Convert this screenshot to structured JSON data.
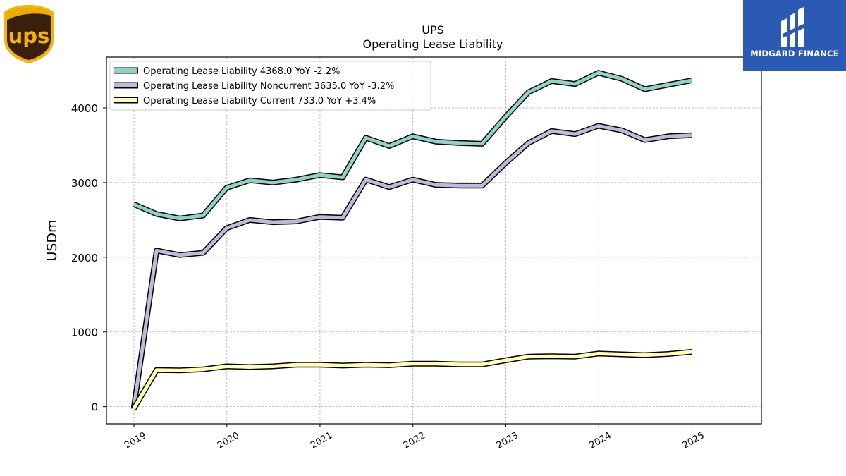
{
  "branding": {
    "left_logo_text": "ups",
    "right_logo_text": "MIDGARD FINANCE",
    "right_logo_bg": "#2a5ab4"
  },
  "chart_data": {
    "type": "line",
    "title": "UPS",
    "subtitle": "Operating Lease Liability",
    "xlabel": "",
    "ylabel": "USDm",
    "x_ticks": [
      "2019",
      "2020",
      "2021",
      "2022",
      "2023",
      "2024",
      "2025"
    ],
    "y_ticks": [
      "0",
      "1000",
      "2000",
      "3000",
      "4000"
    ],
    "xlim": [
      "2018-09-15",
      "2025-10-01"
    ],
    "ylim": [
      -230,
      4680
    ],
    "grid": true,
    "legend_position": "top-left",
    "x": [
      "2018-12-31",
      "2019-03-31",
      "2019-06-30",
      "2019-09-30",
      "2019-12-31",
      "2020-03-31",
      "2020-06-30",
      "2020-09-30",
      "2020-12-31",
      "2021-03-31",
      "2021-06-30",
      "2021-09-30",
      "2021-12-31",
      "2022-03-31",
      "2022-06-30",
      "2022-09-30",
      "2022-12-31",
      "2023-03-31",
      "2023-06-30",
      "2023-09-30",
      "2023-12-31",
      "2024-03-31",
      "2024-06-30",
      "2024-09-30",
      "2024-12-31"
    ],
    "series": [
      {
        "name": "Operating Lease Liability",
        "legend_label": "Operating Lease Liability  4368.0 YoY -2.2%",
        "color": "#8dd3c7",
        "values": [
          2710,
          2580,
          2520,
          2560,
          2930,
          3030,
          3000,
          3040,
          3100,
          3070,
          3600,
          3490,
          3620,
          3550,
          3530,
          3520,
          3880,
          4210,
          4360,
          4320,
          4470,
          4390,
          4250,
          4310,
          4368
        ]
      },
      {
        "name": "Operating Lease Liability Noncurrent",
        "legend_label": "Operating Lease Liability Noncurrent  3635.0 YoY -3.2%",
        "color": "#bebada",
        "values": [
          -30,
          2090,
          2030,
          2060,
          2390,
          2500,
          2470,
          2480,
          2540,
          2530,
          3040,
          2940,
          3040,
          2970,
          2960,
          2960,
          3260,
          3530,
          3690,
          3650,
          3760,
          3700,
          3570,
          3620,
          3635
        ]
      },
      {
        "name": "Operating Lease Liability Current",
        "legend_label": "Operating Lease Liability Current  733.0 YoY +3.4%",
        "color": "#ffffb3",
        "values": [
          -30,
          490,
          485,
          500,
          540,
          530,
          540,
          560,
          560,
          550,
          560,
          555,
          575,
          575,
          565,
          565,
          620,
          670,
          675,
          670,
          710,
          700,
          690,
          705,
          733
        ]
      }
    ]
  }
}
